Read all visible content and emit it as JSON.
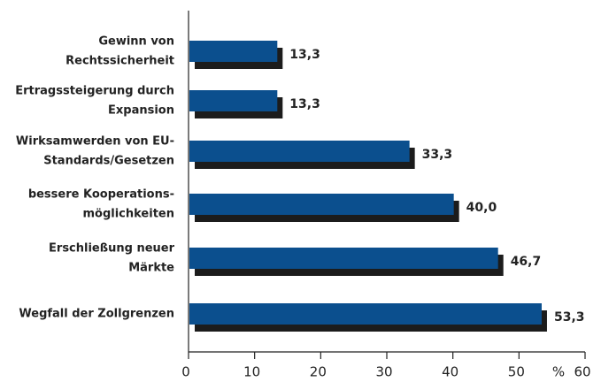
{
  "chart_data": {
    "type": "bar",
    "orientation": "horizontal",
    "categories": [
      [
        "Gewinn von",
        "Rechtssicherheit"
      ],
      [
        "Ertragssteigerung durch",
        "Expansion"
      ],
      [
        "Wirksamwerden von EU-",
        "Standards/Gesetzen"
      ],
      [
        "bessere Kooperations-",
        "möglichkeiten"
      ],
      [
        "Erschließung neuer",
        "Märkte"
      ],
      [
        "Wegfall der Zollgrenzen"
      ]
    ],
    "values": [
      13.3,
      13.3,
      33.3,
      40.0,
      46.7,
      53.3
    ],
    "value_labels": [
      "13,3",
      "13,3",
      "33,3",
      "40,0",
      "46,7",
      "53,3"
    ],
    "color": "#0b4f8e",
    "shadow_color": "#1c1c1c",
    "x_label": "%",
    "xlim": [
      0,
      60
    ],
    "xticks": [
      0,
      10,
      20,
      30,
      40,
      50,
      60
    ]
  }
}
